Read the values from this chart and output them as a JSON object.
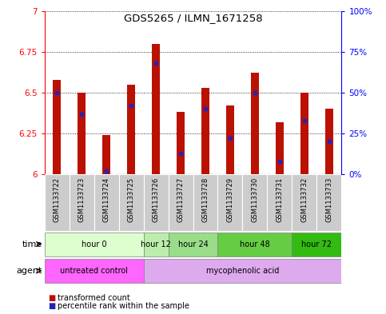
{
  "title": "GDS5265 / ILMN_1671258",
  "samples": [
    "GSM1133722",
    "GSM1133723",
    "GSM1133724",
    "GSM1133725",
    "GSM1133726",
    "GSM1133727",
    "GSM1133728",
    "GSM1133729",
    "GSM1133730",
    "GSM1133731",
    "GSM1133732",
    "GSM1133733"
  ],
  "transformed_counts": [
    6.58,
    6.5,
    6.24,
    6.55,
    6.8,
    6.38,
    6.53,
    6.42,
    6.62,
    6.32,
    6.5,
    6.4
  ],
  "percentile_ranks": [
    50,
    37,
    2,
    42,
    68,
    13,
    40,
    22,
    50,
    8,
    33,
    20
  ],
  "y_min": 6.0,
  "y_max": 7.0,
  "y_ticks_left": [
    6.0,
    6.25,
    6.5,
    6.75,
    7.0
  ],
  "y_ticks_right_vals": [
    0,
    25,
    50,
    75,
    100
  ],
  "y_ticks_right_labels": [
    "0%",
    "25%",
    "50%",
    "75%",
    "100%"
  ],
  "bar_color": "#bb1100",
  "blue_color": "#2222bb",
  "time_groups": [
    {
      "label": "hour 0",
      "start": 0,
      "end": 4,
      "color": "#ddffd0"
    },
    {
      "label": "hour 12",
      "start": 4,
      "end": 5,
      "color": "#bbeeaa"
    },
    {
      "label": "hour 24",
      "start": 5,
      "end": 7,
      "color": "#99dd88"
    },
    {
      "label": "hour 48",
      "start": 7,
      "end": 10,
      "color": "#66cc44"
    },
    {
      "label": "hour 72",
      "start": 10,
      "end": 12,
      "color": "#33bb11"
    }
  ],
  "agent_groups": [
    {
      "label": "untreated control",
      "start": 0,
      "end": 4,
      "color": "#ff66ff"
    },
    {
      "label": "mycophenolic acid",
      "start": 4,
      "end": 12,
      "color": "#ddaaee"
    }
  ],
  "legend_bar_label": "transformed count",
  "legend_blue_label": "percentile rank within the sample",
  "plot_bg_color": "#ffffff",
  "bar_width": 0.35,
  "bar_base": 6.0,
  "sample_bg": "#cccccc",
  "n_samples": 12
}
